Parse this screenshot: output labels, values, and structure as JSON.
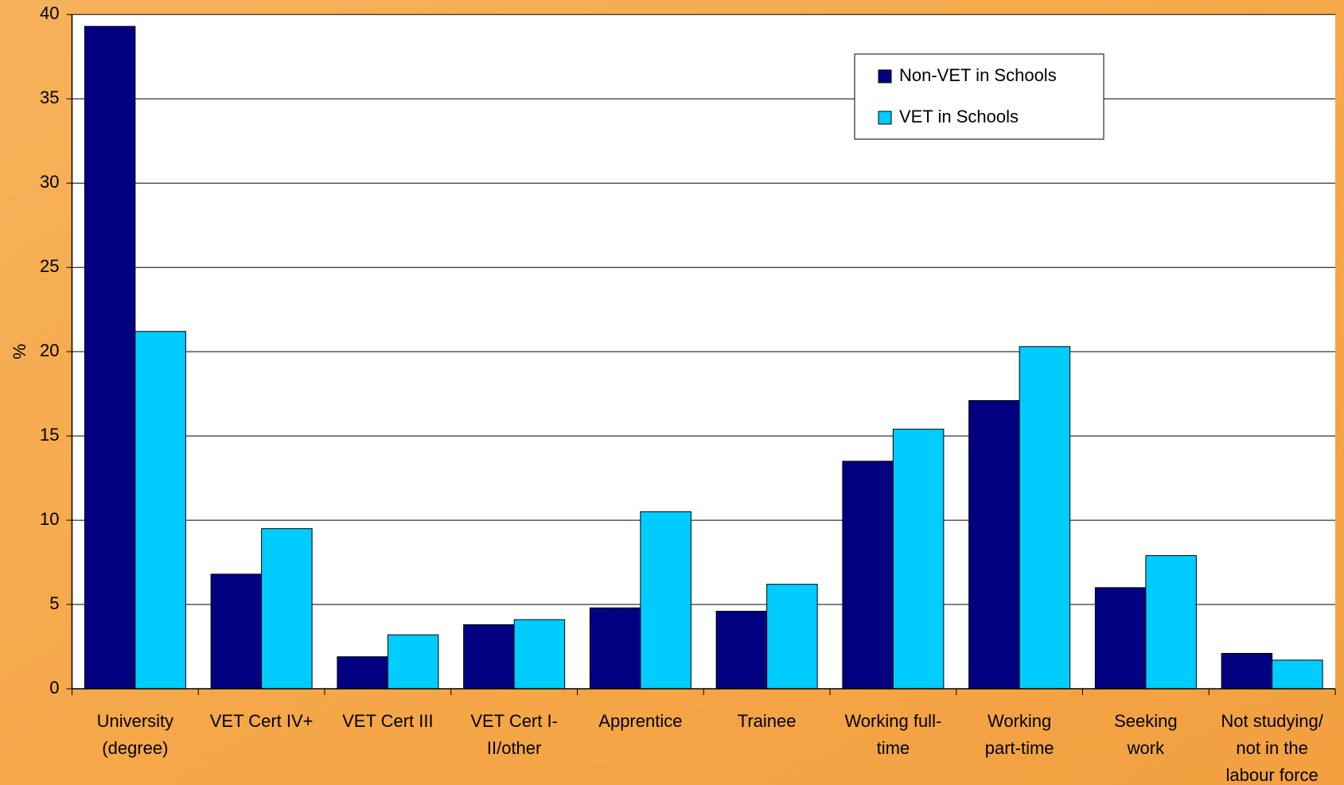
{
  "chart_data": {
    "type": "bar",
    "y_label": "%",
    "categories": [
      "University\n(degree)",
      "VET Cert IV+",
      "VET Cert III",
      "VET Cert I-\nII/other",
      "Apprentice",
      "Trainee",
      "Working full-\ntime",
      "Working\npart-time",
      "Seeking\nwork",
      "Not studying/\nnot in the\nlabour force"
    ],
    "series": [
      {
        "name": "Non-VET in Schools",
        "color": "#000080",
        "values": [
          39.3,
          6.8,
          1.9,
          3.8,
          4.8,
          4.6,
          13.5,
          17.1,
          6.0,
          2.1
        ]
      },
      {
        "name": "VET in Schools",
        "color": "#00ccff",
        "values": [
          21.2,
          9.5,
          3.2,
          4.1,
          10.5,
          6.2,
          15.4,
          20.3,
          7.9,
          1.7
        ]
      }
    ],
    "ylim": [
      0,
      40
    ],
    "yticks": [
      0,
      5,
      10,
      15,
      20,
      25,
      30,
      35,
      40
    ],
    "grid": true,
    "legend": "top-right"
  }
}
